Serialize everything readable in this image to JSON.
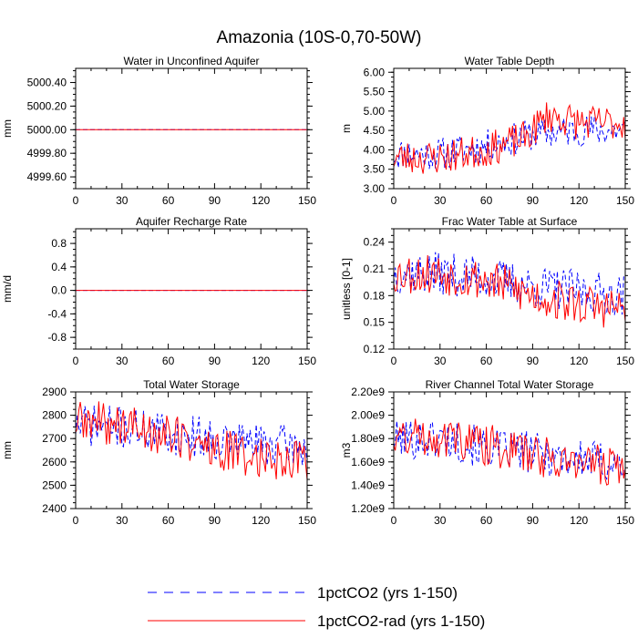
{
  "title": "Amazonia (10S-0,70-50W)",
  "legend": [
    {
      "label": "1pctCO2 (yrs 1-150)",
      "color": "#0000ff",
      "dash": true
    },
    {
      "label": "1pctCO2-rad (yrs 1-150)",
      "color": "#ff0000",
      "dash": false
    }
  ],
  "chart_data": [
    {
      "type": "line",
      "title": "Water in Unconfined Aquifer",
      "ylabel": "mm",
      "xlim": [
        0,
        150
      ],
      "ylim": [
        4999.5,
        5000.52
      ],
      "xticks": [
        0,
        30,
        60,
        90,
        120,
        150
      ],
      "yticks": [
        4999.6,
        4999.8,
        5000.0,
        5000.2,
        5000.4
      ],
      "yticklabels": [
        "4999.60",
        "4999.80",
        "5000.00",
        "5000.20",
        "5000.40"
      ],
      "series": [
        {
          "name": "1pctCO2 (yrs 1-150)",
          "mode": "constant",
          "value": 5000.0
        },
        {
          "name": "1pctCO2-rad (yrs 1-150)",
          "mode": "constant",
          "value": 5000.0
        }
      ]
    },
    {
      "type": "line",
      "title": "Water Table Depth",
      "ylabel": "m",
      "xlim": [
        0,
        150
      ],
      "ylim": [
        3.0,
        6.1
      ],
      "xticks": [
        0,
        30,
        60,
        90,
        120,
        150
      ],
      "yticks": [
        3.0,
        3.5,
        4.0,
        4.5,
        5.0,
        5.5,
        6.0
      ],
      "yticklabels": [
        "3.00",
        "3.50",
        "4.00",
        "4.50",
        "5.00",
        "5.50",
        "6.00"
      ],
      "series": [
        {
          "name": "1pctCO2 (yrs 1-150)",
          "mode": "noisy",
          "keys": [
            [
              0,
              3.9
            ],
            [
              30,
              3.9
            ],
            [
              60,
              4.1
            ],
            [
              90,
              4.4
            ],
            [
              120,
              4.5
            ],
            [
              150,
              4.5
            ]
          ],
          "amp": 0.42,
          "seed": 11,
          "min": 3.15,
          "max": 5.3
        },
        {
          "name": "1pctCO2-rad (yrs 1-150)",
          "mode": "noisy",
          "keys": [
            [
              0,
              3.8
            ],
            [
              30,
              3.8
            ],
            [
              60,
              4.0
            ],
            [
              85,
              4.3
            ],
            [
              100,
              4.9
            ],
            [
              120,
              4.7
            ],
            [
              150,
              4.7
            ]
          ],
          "amp": 0.45,
          "seed": 23,
          "min": 3.0,
          "max": 5.95
        }
      ]
    },
    {
      "type": "line",
      "title": "Aquifer Recharge Rate",
      "ylabel": "mm/d",
      "xlim": [
        0,
        150
      ],
      "ylim": [
        -1.0,
        1.05
      ],
      "xticks": [
        0,
        30,
        60,
        90,
        120,
        150
      ],
      "yticks": [
        -0.8,
        -0.4,
        0.0,
        0.4,
        0.8
      ],
      "yticklabels": [
        "-0.8",
        "-0.4",
        "0.0",
        "0.4",
        "0.8"
      ],
      "series": [
        {
          "name": "1pctCO2 (yrs 1-150)",
          "mode": "constant",
          "value": 0.0
        },
        {
          "name": "1pctCO2-rad (yrs 1-150)",
          "mode": "constant",
          "value": 0.0
        }
      ]
    },
    {
      "type": "line",
      "title": "Frac Water Table at Surface",
      "ylabel": "unitless [0-1]",
      "xlim": [
        0,
        150
      ],
      "ylim": [
        0.12,
        0.255
      ],
      "xticks": [
        0,
        30,
        60,
        90,
        120,
        150
      ],
      "yticks": [
        0.12,
        0.15,
        0.18,
        0.21,
        0.24
      ],
      "yticklabels": [
        "0.12",
        "0.15",
        "0.18",
        "0.21",
        "0.24"
      ],
      "series": [
        {
          "name": "1pctCO2 (yrs 1-150)",
          "mode": "noisy",
          "keys": [
            [
              0,
              0.205
            ],
            [
              30,
              0.205
            ],
            [
              60,
              0.2
            ],
            [
              90,
              0.19
            ],
            [
              120,
              0.185
            ],
            [
              150,
              0.18
            ]
          ],
          "amp": 0.024,
          "seed": 37,
          "min": 0.14,
          "max": 0.235
        },
        {
          "name": "1pctCO2-rad (yrs 1-150)",
          "mode": "noisy",
          "keys": [
            [
              0,
              0.205
            ],
            [
              30,
              0.205
            ],
            [
              60,
              0.198
            ],
            [
              90,
              0.18
            ],
            [
              120,
              0.17
            ],
            [
              150,
              0.165
            ]
          ],
          "amp": 0.024,
          "seed": 53,
          "min": 0.125,
          "max": 0.245
        }
      ]
    },
    {
      "type": "line",
      "title": "Total Water Storage",
      "ylabel": "mm",
      "xlim": [
        0,
        150
      ],
      "ylim": [
        2400,
        2900
      ],
      "xticks": [
        0,
        30,
        60,
        90,
        120,
        150
      ],
      "yticks": [
        2400,
        2500,
        2600,
        2700,
        2800,
        2900
      ],
      "yticklabels": [
        "2400",
        "2500",
        "2600",
        "2700",
        "2800",
        "2900"
      ],
      "series": [
        {
          "name": "1pctCO2 (yrs 1-150)",
          "mode": "noisy",
          "keys": [
            [
              0,
              2760
            ],
            [
              30,
              2750
            ],
            [
              60,
              2720
            ],
            [
              90,
              2700
            ],
            [
              120,
              2680
            ],
            [
              150,
              2660
            ]
          ],
          "amp": 90,
          "seed": 71,
          "min": 2500,
          "max": 2880
        },
        {
          "name": "1pctCO2-rad (yrs 1-150)",
          "mode": "noisy",
          "keys": [
            [
              0,
              2770
            ],
            [
              30,
              2760
            ],
            [
              60,
              2720
            ],
            [
              90,
              2650
            ],
            [
              120,
              2620
            ],
            [
              150,
              2610
            ]
          ],
          "amp": 95,
          "seed": 89,
          "min": 2410,
          "max": 2890
        }
      ]
    },
    {
      "type": "line",
      "title": "River Channel Total Water Storage",
      "ylabel": "m3",
      "xlim": [
        0,
        150
      ],
      "ylim": [
        1200000000.0,
        2200000000.0
      ],
      "xticks": [
        0,
        30,
        60,
        90,
        120,
        150
      ],
      "yticks": [
        1200000000.0,
        1400000000.0,
        1600000000.0,
        1800000000.0,
        2000000000.0,
        2200000000.0
      ],
      "yticklabels": [
        "1.20e9",
        "1.40e9",
        "1.60e9",
        "1.80e9",
        "2.00e9",
        "2.20e9"
      ],
      "series": [
        {
          "name": "1pctCO2 (yrs 1-150)",
          "mode": "noisy",
          "keys": [
            [
              0,
              1800000000.0
            ],
            [
              30,
              1800000000.0
            ],
            [
              60,
              1720000000.0
            ],
            [
              90,
              1680000000.0
            ],
            [
              120,
              1620000000.0
            ],
            [
              150,
              1580000000.0
            ]
          ],
          "amp": 180000000.0,
          "seed": 101,
          "min": 1300000000.0,
          "max": 1950000000.0
        },
        {
          "name": "1pctCO2-rad (yrs 1-150)",
          "mode": "noisy",
          "keys": [
            [
              0,
              1820000000.0
            ],
            [
              30,
              1820000000.0
            ],
            [
              60,
              1750000000.0
            ],
            [
              90,
              1660000000.0
            ],
            [
              120,
              1600000000.0
            ],
            [
              150,
              1550000000.0
            ]
          ],
          "amp": 180000000.0,
          "seed": 131,
          "min": 1300000000.0,
          "max": 2050000000.0
        }
      ]
    }
  ]
}
